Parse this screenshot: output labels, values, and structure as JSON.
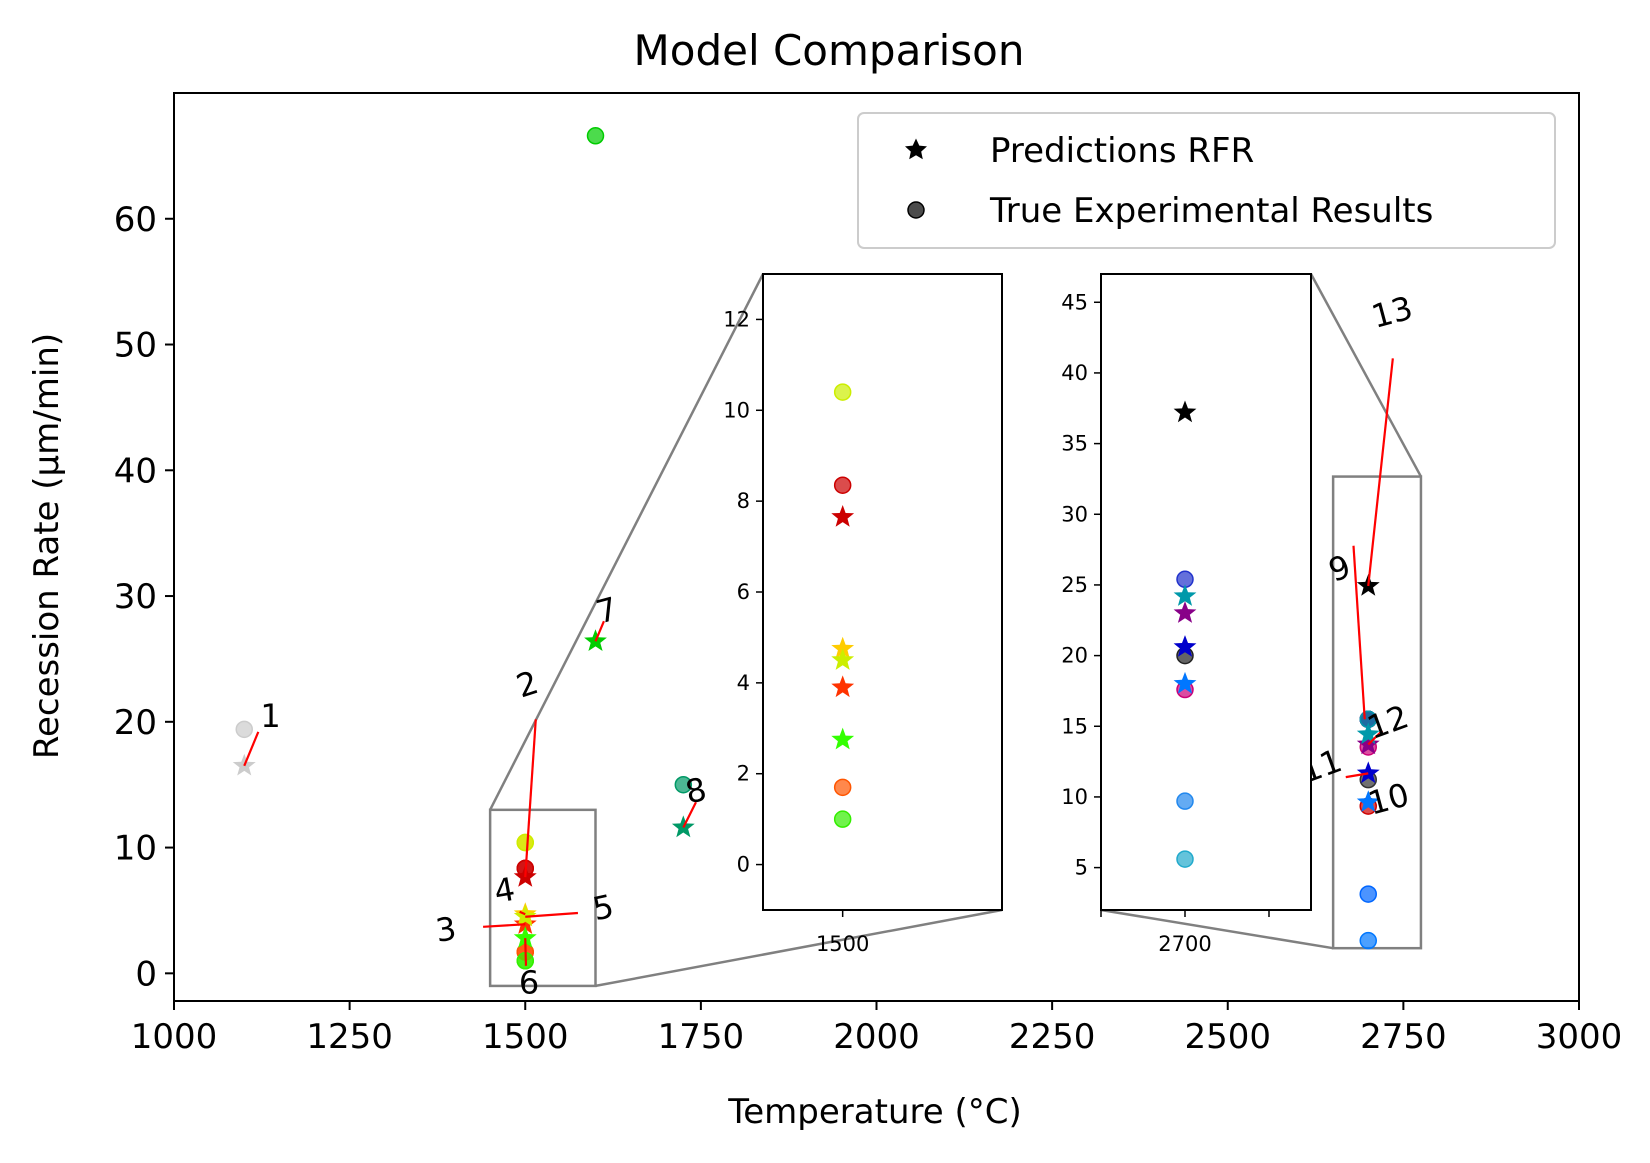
{
  "chart_data": {
    "type": "scatter",
    "title": "Model Comparison",
    "xlabel": "Temperature (°C)",
    "ylabel": "Recession Rate (μm/min)",
    "xlim": [
      1000,
      3000
    ],
    "ylim": [
      -2.2,
      70
    ],
    "x_ticks": [
      1000,
      1250,
      1500,
      1750,
      2000,
      2250,
      2500,
      2750,
      3000
    ],
    "y_ticks": [
      0,
      10,
      20,
      30,
      40,
      50,
      60
    ],
    "grid": false,
    "legend": {
      "placement": "top-right",
      "entries": [
        "Predictions RFR",
        "True Experimental Results"
      ]
    },
    "samples": [
      {
        "id": "1",
        "x": 1100,
        "true": 19.4,
        "pred": 16.5,
        "color": "#cccccc"
      },
      {
        "id": "2",
        "x": 1500,
        "true": 8.35,
        "pred": 7.65,
        "color": "#cc0000"
      },
      {
        "id": "3",
        "x": 1500,
        "true": 1.7,
        "pred": 3.9,
        "color": "#ff3300"
      },
      {
        "id": "4",
        "x": 1500,
        "true": 10.4,
        "pred": 4.7,
        "color": "#ffcc00"
      },
      {
        "id": "5",
        "x": 1500,
        "true": 10.4,
        "pred": 4.5,
        "color": "#ccee00"
      },
      {
        "id": "6",
        "x": 1500,
        "true": 1.0,
        "pred": 2.8,
        "color": "#33ff00"
      },
      {
        "id": "7",
        "x": 1600,
        "true": 66.6,
        "pred": 26.4,
        "color": "#00cc00"
      },
      {
        "id": "8",
        "x": 1725,
        "true": 15.0,
        "pred": 11.6,
        "color": "#009966"
      },
      {
        "id": "9",
        "x": 2700,
        "true": 20.2,
        "pred": 30.8,
        "color": "#000000"
      },
      {
        "id": "10",
        "x": 2700,
        "true": 2.6,
        "pred": 13.6,
        "color": "#0077ff"
      },
      {
        "id": "11",
        "x": 2700,
        "true": 20.2,
        "pred": 15.9,
        "color": "#0000cc"
      },
      {
        "id": "12",
        "x": 2700,
        "true": 20.2,
        "pred": 18.2,
        "color": "#880088"
      },
      {
        "id": "13",
        "x": 2700,
        "true": 20.2,
        "pred": 19.0,
        "color": "#0099aa"
      }
    ],
    "extra_true_points": [
      {
        "x": 1500,
        "y": 8.35,
        "color": "#cc0000"
      },
      {
        "x": 1500,
        "y": 1.7,
        "color": "#ff5500"
      },
      {
        "x": 1500,
        "y": 1.0,
        "color": "#33ee00"
      },
      {
        "x": 2700,
        "y": 13.3,
        "color": "#cc0000"
      },
      {
        "x": 2700,
        "y": 6.3,
        "color": "#0066ff"
      },
      {
        "x": 2700,
        "y": 15.4,
        "color": "#333333"
      },
      {
        "x": 2700,
        "y": 18.0,
        "color": "#cc0077"
      }
    ],
    "inset_left": {
      "xlim": [
        1450,
        1600
      ],
      "ylim": [
        -1,
        13
      ],
      "x_ticks": [
        1500
      ],
      "y_ticks": [
        0,
        2,
        4,
        6,
        8,
        10,
        12
      ],
      "x_tick_labels": [
        "1500"
      ],
      "points": [
        {
          "kind": "true",
          "x": 1500,
          "y": 10.4,
          "color": "#ccee00"
        },
        {
          "kind": "true",
          "x": 1500,
          "y": 8.35,
          "color": "#cc0000"
        },
        {
          "kind": "pred",
          "x": 1500,
          "y": 7.65,
          "color": "#cc0000"
        },
        {
          "kind": "pred",
          "x": 1500,
          "y": 4.75,
          "color": "#ffcc00"
        },
        {
          "kind": "pred",
          "x": 1500,
          "y": 4.5,
          "color": "#ccee00"
        },
        {
          "kind": "pred",
          "x": 1500,
          "y": 3.9,
          "color": "#ff3300"
        },
        {
          "kind": "pred",
          "x": 1500,
          "y": 2.75,
          "color": "#33ff00"
        },
        {
          "kind": "true",
          "x": 1500,
          "y": 1.7,
          "color": "#ff5500"
        },
        {
          "kind": "true",
          "x": 1500,
          "y": 1.0,
          "color": "#33ee00"
        }
      ]
    },
    "inset_right": {
      "xlim": [
        2650,
        2775
      ],
      "ylim": [
        2,
        47
      ],
      "x_ticks": [
        2650,
        2700,
        2750
      ],
      "y_ticks": [
        5,
        10,
        15,
        20,
        25,
        30,
        35,
        40,
        45
      ],
      "x_tick_labels": [
        "",
        "2700",
        ""
      ],
      "points": [
        {
          "kind": "pred",
          "x": 2700,
          "y": 37.2,
          "color": "#000000"
        },
        {
          "kind": "true",
          "x": 2700,
          "y": 25.4,
          "color": "#2233cc"
        },
        {
          "kind": "pred",
          "x": 2700,
          "y": 24.2,
          "color": "#0099aa"
        },
        {
          "kind": "pred",
          "x": 2700,
          "y": 23.0,
          "color": "#880088"
        },
        {
          "kind": "pred",
          "x": 2700,
          "y": 20.6,
          "color": "#0000cc"
        },
        {
          "kind": "true",
          "x": 2700,
          "y": 20.0,
          "color": "#222222"
        },
        {
          "kind": "true",
          "x": 2700,
          "y": 17.6,
          "color": "#cc0077"
        },
        {
          "kind": "pred",
          "x": 2700,
          "y": 18.0,
          "color": "#0077ff"
        },
        {
          "kind": "true",
          "x": 2700,
          "y": 9.7,
          "color": "#2288ee"
        },
        {
          "kind": "true",
          "x": 2700,
          "y": 5.6,
          "color": "#22aacc"
        }
      ]
    },
    "zoom_boxes": [
      {
        "x": [
          1450,
          1600
        ],
        "y": [
          -1,
          13
        ]
      },
      {
        "x": [
          2650,
          2775
        ],
        "y": [
          2,
          39.5
        ]
      }
    ],
    "annotations": [
      {
        "text": "1",
        "line": [
          [
            1100,
            16.5
          ],
          [
            1120,
            19.2
          ]
        ],
        "label_at": [
          1123,
          19.6
        ],
        "rotate": 0
      },
      {
        "text": "2",
        "line": [
          [
            1500,
            7.65
          ],
          [
            1515,
            20.2
          ]
        ],
        "label_at": [
          1494,
          21.9
        ],
        "rotate": -18
      },
      {
        "text": "3",
        "line": [
          [
            1500,
            3.9
          ],
          [
            1440,
            3.7
          ]
        ],
        "label_at": [
          1375,
          2.5
        ],
        "rotate": -8
      },
      {
        "text": "4",
        "line": [
          [
            1500,
            4.7
          ],
          [
            1492,
            4.9
          ]
        ],
        "label_at": [
          1459,
          5.6
        ],
        "rotate": -10
      },
      {
        "text": "5",
        "line": [
          [
            1500,
            4.5
          ],
          [
            1575,
            4.8
          ]
        ],
        "label_at": [
          1600,
          4.2
        ],
        "rotate": -12
      },
      {
        "text": "6",
        "line": [
          [
            1500,
            2.8
          ],
          [
            1501,
            0.6
          ]
        ],
        "label_at": [
          1491,
          -1.6
        ],
        "rotate": 0
      },
      {
        "text": "7",
        "line": [
          [
            1600,
            26.4
          ],
          [
            1612,
            28.0
          ]
        ],
        "label_at": [
          1606,
          27.8
        ],
        "rotate": -15
      },
      {
        "text": "8",
        "line": [
          [
            1725,
            11.6
          ],
          [
            1743,
            13.6
          ]
        ],
        "label_at": [
          1732,
          13.5
        ],
        "rotate": -12
      },
      {
        "text": "9",
        "line": [
          [
            2695,
            20.2
          ],
          [
            2679,
            34.0
          ]
        ],
        "label_at": [
          2651,
          31.1
        ],
        "rotate": -20
      },
      {
        "text": "10",
        "line": [
          [
            2700,
            13.6
          ],
          [
            2700,
            13.6
          ]
        ],
        "label_at": [
          2705,
          12.6
        ],
        "rotate": -15
      },
      {
        "text": "11",
        "line": [
          [
            2700,
            15.9
          ],
          [
            2668,
            15.6
          ]
        ],
        "label_at": [
          2611,
          15.1
        ],
        "rotate": -20
      },
      {
        "text": "12",
        "line": [
          [
            2700,
            18.2
          ],
          [
            2720,
            19.3
          ]
        ],
        "label_at": [
          2706,
          18.6
        ],
        "rotate": -20
      },
      {
        "text": "13",
        "line": [
          [
            2700,
            30.8
          ],
          [
            2735,
            48.9
          ]
        ],
        "label_at": [
          2710,
          51.3
        ],
        "rotate": -15
      }
    ]
  }
}
